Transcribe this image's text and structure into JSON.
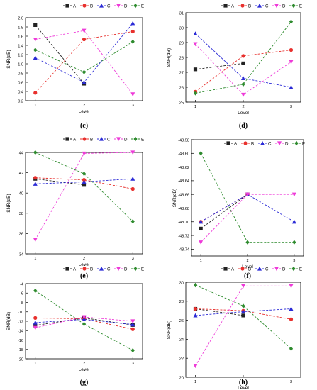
{
  "figure": {
    "panels": [
      "(c)",
      "(d)",
      "(e)",
      "(f)",
      "(g)",
      "(h)"
    ]
  },
  "chart_data": [
    {
      "type": "line",
      "panel_label": "(c)",
      "xlabel": "Level",
      "ylabel": "SNR(dB)",
      "x": [
        1,
        2,
        3
      ],
      "xlim": [
        0.8,
        3.2
      ],
      "ylim": [
        0.2,
        2.0
      ],
      "yticks": [
        0.2,
        0.4,
        0.6,
        0.8,
        1.0,
        1.2,
        1.4,
        1.6,
        1.8,
        2.0
      ],
      "ytick_labels": [
        "0.2",
        "0.4",
        "0.6",
        "0.8",
        "1.0",
        "1.2",
        "1.4",
        "1.6",
        "1.8",
        "2.0"
      ],
      "legend_position": "top",
      "series": [
        {
          "name": "A",
          "values": [
            1.84,
            0.57,
            null
          ],
          "color": "#222222",
          "marker": "square"
        },
        {
          "name": "B",
          "values": [
            0.37,
            1.53,
            1.7
          ],
          "color": "#e8302d",
          "marker": "circle"
        },
        {
          "name": "C",
          "values": [
            1.13,
            0.6,
            1.88
          ],
          "color": "#2b2bd6",
          "marker": "triangle-up"
        },
        {
          "name": "D",
          "values": [
            1.53,
            1.72,
            0.34
          ],
          "color": "#ee3ad8",
          "marker": "triangle-down"
        },
        {
          "name": "E",
          "values": [
            1.3,
            0.82,
            1.48
          ],
          "color": "#2e8b2e",
          "marker": "diamond"
        }
      ]
    },
    {
      "type": "line",
      "panel_label": "(d)",
      "xlabel": "Level",
      "ylabel": "SNR(dB)",
      "x": [
        1,
        2,
        3
      ],
      "xlim": [
        0.8,
        3.2
      ],
      "ylim": [
        25,
        31
      ],
      "yticks": [
        25,
        26,
        27,
        28,
        29,
        30,
        31
      ],
      "ytick_labels": [
        "25",
        "26",
        "27",
        "28",
        "29",
        "30",
        "31"
      ],
      "legend_position": "top",
      "series": [
        {
          "name": "A",
          "values": [
            27.2,
            27.6,
            null
          ],
          "color": "#222222",
          "marker": "square"
        },
        {
          "name": "B",
          "values": [
            25.7,
            28.1,
            28.5
          ],
          "color": "#e8302d",
          "marker": "circle"
        },
        {
          "name": "C",
          "values": [
            29.6,
            26.6,
            26.0
          ],
          "color": "#2b2bd6",
          "marker": "triangle-up"
        },
        {
          "name": "D",
          "values": [
            28.9,
            25.5,
            27.7
          ],
          "color": "#ee3ad8",
          "marker": "triangle-down"
        },
        {
          "name": "E",
          "values": [
            25.6,
            26.2,
            30.4
          ],
          "color": "#2e8b2e",
          "marker": "diamond"
        }
      ]
    },
    {
      "type": "line",
      "panel_label": "(e)",
      "xlabel": "Level",
      "ylabel": "SNR(dB)",
      "x": [
        1,
        2,
        3
      ],
      "xlim": [
        0.8,
        3.2
      ],
      "ylim": [
        34,
        44
      ],
      "yticks": [
        34,
        36,
        38,
        40,
        42,
        44
      ],
      "ytick_labels": [
        "34",
        "36",
        "38",
        "40",
        "42",
        "44"
      ],
      "legend_position": "top",
      "series": [
        {
          "name": "A",
          "values": [
            41.4,
            40.8,
            null
          ],
          "color": "#222222",
          "marker": "square"
        },
        {
          "name": "B",
          "values": [
            41.5,
            41.3,
            40.4
          ],
          "color": "#e8302d",
          "marker": "circle"
        },
        {
          "name": "C",
          "values": [
            40.9,
            41.1,
            41.4
          ],
          "color": "#2b2bd6",
          "marker": "triangle-up"
        },
        {
          "name": "D",
          "values": [
            35.4,
            43.9,
            44.0
          ],
          "color": "#ee3ad8",
          "marker": "triangle-down"
        },
        {
          "name": "E",
          "values": [
            44.0,
            41.9,
            37.2
          ],
          "color": "#2e8b2e",
          "marker": "diamond"
        }
      ]
    },
    {
      "type": "line",
      "panel_label": "(f)",
      "xlabel": "Level",
      "ylabel": "SNR(dB)",
      "x": [
        1,
        2,
        3
      ],
      "xlim": [
        0.8,
        3.2
      ],
      "ylim": [
        -48.75,
        -48.58
      ],
      "yticks": [
        -48.58,
        -48.6,
        -48.62,
        -48.64,
        -48.66,
        -48.68,
        -48.7,
        -48.72,
        -48.74
      ],
      "ytick_labels": [
        "-48.58",
        "-48.60",
        "-48.62",
        "-48.64",
        "-48.66",
        "-48.68",
        "-48.70",
        "-48.72",
        "-48.74"
      ],
      "legend_position": "top",
      "series": [
        {
          "name": "A",
          "values": [
            -48.71,
            -48.66,
            null
          ],
          "color": "#222222",
          "marker": "square"
        },
        {
          "name": "B",
          "values": [
            -48.7,
            -48.66,
            null
          ],
          "color": "#e8302d",
          "marker": "circle"
        },
        {
          "name": "C",
          "values": [
            -48.7,
            -48.66,
            -48.7
          ],
          "color": "#2b2bd6",
          "marker": "triangle-up"
        },
        {
          "name": "D",
          "values": [
            -48.73,
            -48.66,
            -48.66
          ],
          "color": "#ee3ad8",
          "marker": "triangle-down"
        },
        {
          "name": "E",
          "values": [
            -48.6,
            -48.73,
            -48.73
          ],
          "color": "#2e8b2e",
          "marker": "diamond"
        }
      ]
    },
    {
      "type": "line",
      "panel_label": "(g)",
      "xlabel": "Level",
      "ylabel": "SNR(dB)",
      "x": [
        1,
        2,
        3
      ],
      "xlim": [
        0.8,
        3.2
      ],
      "ylim": [
        -20,
        -4
      ],
      "yticks": [
        -4,
        -6,
        -8,
        -10,
        -12,
        -14,
        -16,
        -18,
        -20
      ],
      "ytick_labels": [
        "-4",
        "-6",
        "-8",
        "-10",
        "-12",
        "-14",
        "-16",
        "-18",
        "-20"
      ],
      "legend_position": "top",
      "series": [
        {
          "name": "A",
          "values": [
            -12.9,
            -11.3,
            -12.8
          ],
          "color": "#222222",
          "marker": "square"
        },
        {
          "name": "B",
          "values": [
            -11.3,
            -11.5,
            -13.7
          ],
          "color": "#e8302d",
          "marker": "circle"
        },
        {
          "name": "C",
          "values": [
            -12.3,
            -11.6,
            -12.7
          ],
          "color": "#2b2bd6",
          "marker": "triangle-up"
        },
        {
          "name": "D",
          "values": [
            -13.4,
            -11.1,
            -12.0
          ],
          "color": "#ee3ad8",
          "marker": "triangle-down"
        },
        {
          "name": "E",
          "values": [
            -5.5,
            -12.6,
            -18.2
          ],
          "color": "#2e8b2e",
          "marker": "diamond"
        }
      ]
    },
    {
      "type": "line",
      "panel_label": "(h)",
      "xlabel": "Level",
      "ylabel": "SNR(dB)",
      "x": [
        1,
        2,
        3
      ],
      "xlim": [
        0.8,
        3.2
      ],
      "ylim": [
        20,
        30
      ],
      "yticks": [
        20,
        22,
        24,
        26,
        28,
        30
      ],
      "ytick_labels": [
        "20",
        "22",
        "24",
        "26",
        "28",
        "30"
      ],
      "legend_position": "top",
      "series": [
        {
          "name": "A",
          "values": [
            27.2,
            26.5,
            null
          ],
          "color": "#222222",
          "marker": "square"
        },
        {
          "name": "B",
          "values": [
            27.2,
            27.0,
            26.1
          ],
          "color": "#e8302d",
          "marker": "circle"
        },
        {
          "name": "C",
          "values": [
            26.5,
            26.9,
            27.2
          ],
          "color": "#2b2bd6",
          "marker": "triangle-up"
        },
        {
          "name": "D",
          "values": [
            21.2,
            29.6,
            29.6
          ],
          "color": "#ee3ad8",
          "marker": "triangle-down"
        },
        {
          "name": "E",
          "values": [
            29.7,
            27.5,
            23.0
          ],
          "color": "#2e8b2e",
          "marker": "diamond"
        }
      ]
    }
  ]
}
